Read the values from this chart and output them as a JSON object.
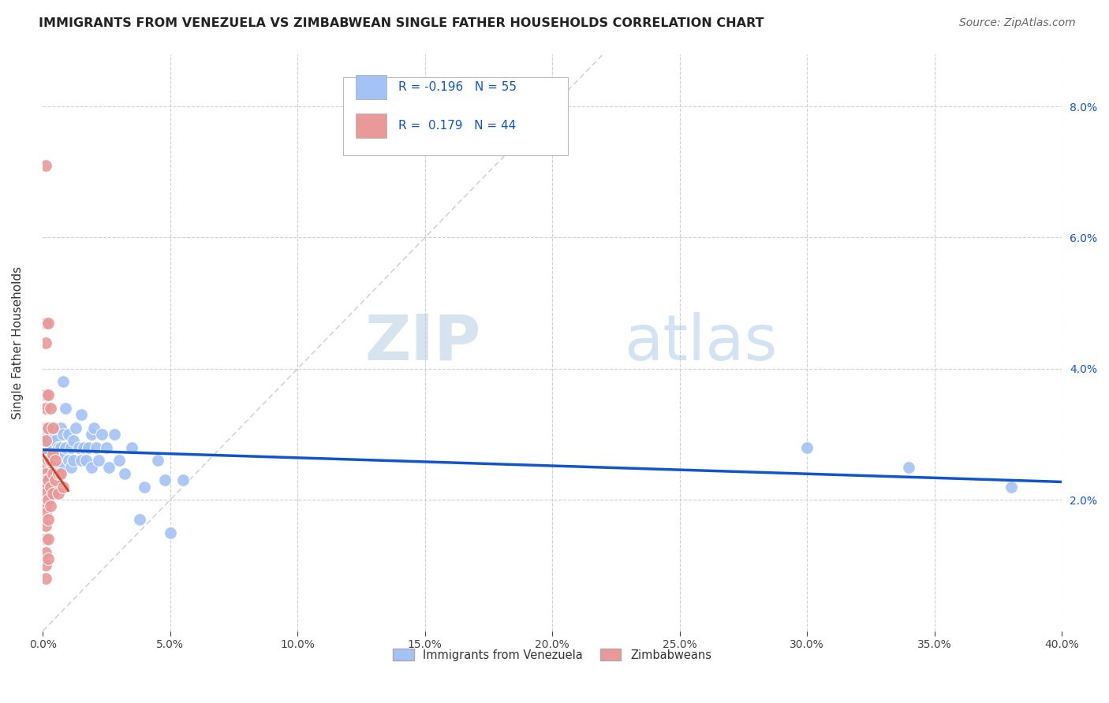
{
  "title": "IMMIGRANTS FROM VENEZUELA VS ZIMBABWEAN SINGLE FATHER HOUSEHOLDS CORRELATION CHART",
  "source": "Source: ZipAtlas.com",
  "ylabel": "Single Father Households",
  "legend_blue_label": "Immigrants from Venezuela",
  "legend_pink_label": "Zimbabweans",
  "r_blue": -0.196,
  "n_blue": 55,
  "r_pink": 0.179,
  "n_pink": 44,
  "xlim": [
    0.0,
    0.4
  ],
  "ylim": [
    0.0,
    0.088
  ],
  "watermark": "ZIPatlas",
  "blue_color": "#a4c2f4",
  "pink_color": "#ea9999",
  "blue_line_color": "#1155cc",
  "pink_line_color": "#cc4125",
  "diag_line_color": "#cccccc",
  "scatter_blue": [
    [
      0.001,
      0.03
    ],
    [
      0.002,
      0.029
    ],
    [
      0.002,
      0.026
    ],
    [
      0.003,
      0.031
    ],
    [
      0.003,
      0.028
    ],
    [
      0.004,
      0.03
    ],
    [
      0.004,
      0.027
    ],
    [
      0.004,
      0.025
    ],
    [
      0.005,
      0.029
    ],
    [
      0.005,
      0.027
    ],
    [
      0.005,
      0.025
    ],
    [
      0.006,
      0.028
    ],
    [
      0.006,
      0.025
    ],
    [
      0.007,
      0.031
    ],
    [
      0.007,
      0.028
    ],
    [
      0.007,
      0.025
    ],
    [
      0.008,
      0.03
    ],
    [
      0.008,
      0.027
    ],
    [
      0.008,
      0.038
    ],
    [
      0.009,
      0.034
    ],
    [
      0.009,
      0.028
    ],
    [
      0.01,
      0.026
    ],
    [
      0.01,
      0.03
    ],
    [
      0.011,
      0.028
    ],
    [
      0.011,
      0.025
    ],
    [
      0.012,
      0.029
    ],
    [
      0.012,
      0.026
    ],
    [
      0.013,
      0.031
    ],
    [
      0.014,
      0.028
    ],
    [
      0.015,
      0.033
    ],
    [
      0.015,
      0.026
    ],
    [
      0.016,
      0.028
    ],
    [
      0.017,
      0.026
    ],
    [
      0.018,
      0.028
    ],
    [
      0.019,
      0.03
    ],
    [
      0.019,
      0.025
    ],
    [
      0.02,
      0.031
    ],
    [
      0.021,
      0.028
    ],
    [
      0.022,
      0.026
    ],
    [
      0.023,
      0.03
    ],
    [
      0.025,
      0.028
    ],
    [
      0.026,
      0.025
    ],
    [
      0.028,
      0.03
    ],
    [
      0.03,
      0.026
    ],
    [
      0.032,
      0.024
    ],
    [
      0.035,
      0.028
    ],
    [
      0.038,
      0.017
    ],
    [
      0.04,
      0.022
    ],
    [
      0.045,
      0.026
    ],
    [
      0.048,
      0.023
    ],
    [
      0.05,
      0.015
    ],
    [
      0.055,
      0.023
    ],
    [
      0.3,
      0.028
    ],
    [
      0.34,
      0.025
    ],
    [
      0.38,
      0.022
    ]
  ],
  "scatter_pink": [
    [
      0.001,
      0.071
    ],
    [
      0.001,
      0.047
    ],
    [
      0.001,
      0.044
    ],
    [
      0.001,
      0.036
    ],
    [
      0.001,
      0.034
    ],
    [
      0.001,
      0.031
    ],
    [
      0.001,
      0.029
    ],
    [
      0.001,
      0.027
    ],
    [
      0.001,
      0.026
    ],
    [
      0.001,
      0.025
    ],
    [
      0.001,
      0.024
    ],
    [
      0.001,
      0.023
    ],
    [
      0.001,
      0.022
    ],
    [
      0.001,
      0.021
    ],
    [
      0.001,
      0.019
    ],
    [
      0.001,
      0.018
    ],
    [
      0.001,
      0.016
    ],
    [
      0.001,
      0.014
    ],
    [
      0.001,
      0.012
    ],
    [
      0.001,
      0.01
    ],
    [
      0.001,
      0.008
    ],
    [
      0.002,
      0.047
    ],
    [
      0.002,
      0.036
    ],
    [
      0.002,
      0.031
    ],
    [
      0.002,
      0.026
    ],
    [
      0.002,
      0.023
    ],
    [
      0.002,
      0.02
    ],
    [
      0.002,
      0.017
    ],
    [
      0.002,
      0.014
    ],
    [
      0.002,
      0.011
    ],
    [
      0.003,
      0.034
    ],
    [
      0.003,
      0.026
    ],
    [
      0.003,
      0.022
    ],
    [
      0.003,
      0.019
    ],
    [
      0.004,
      0.031
    ],
    [
      0.004,
      0.027
    ],
    [
      0.004,
      0.024
    ],
    [
      0.004,
      0.021
    ],
    [
      0.005,
      0.026
    ],
    [
      0.005,
      0.023
    ],
    [
      0.006,
      0.024
    ],
    [
      0.006,
      0.021
    ],
    [
      0.007,
      0.024
    ],
    [
      0.008,
      0.022
    ]
  ],
  "xtick_vals": [
    0.0,
    0.05,
    0.1,
    0.15,
    0.2,
    0.25,
    0.3,
    0.35,
    0.4
  ],
  "xtick_labels": [
    "0.0%",
    "5.0%",
    "10.0%",
    "15.0%",
    "20.0%",
    "25.0%",
    "30.0%",
    "35.0%",
    "40.0%"
  ],
  "ytick_vals": [
    0.0,
    0.02,
    0.04,
    0.06,
    0.08
  ],
  "ytick_right_labels": [
    "",
    "2.0%",
    "4.0%",
    "6.0%",
    "8.0%"
  ]
}
